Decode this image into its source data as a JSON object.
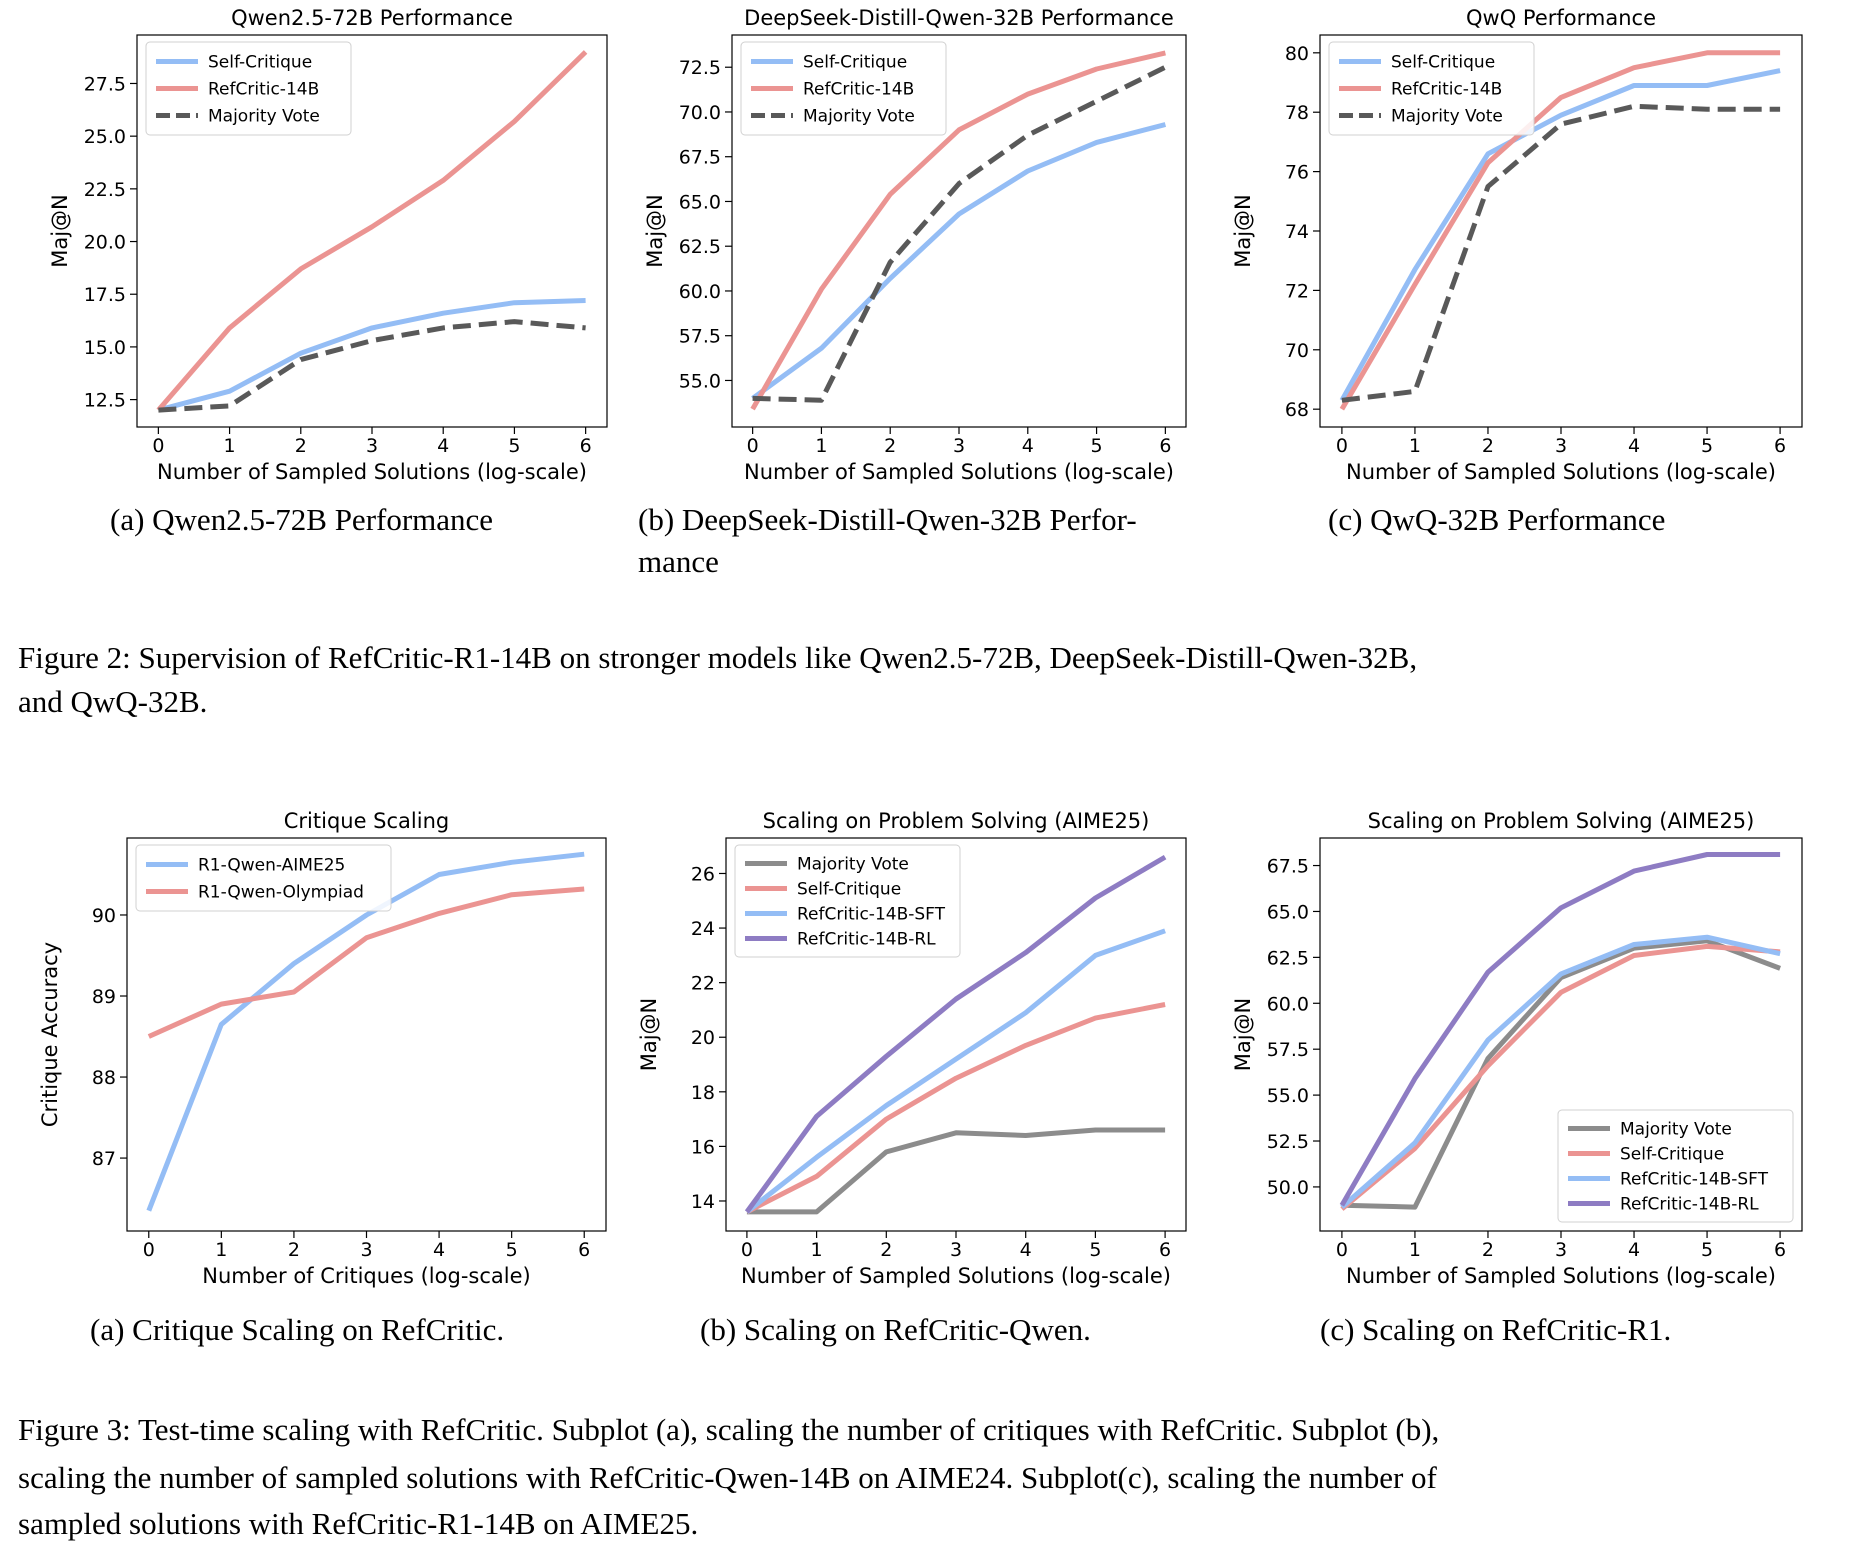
{
  "colors": {
    "blue": "#94bdf5",
    "red": "#eb9492",
    "gray": "#8c8c8c",
    "darkgray": "#595959",
    "purple": "#8e7cc3"
  },
  "figure2": {
    "subcaptions": [
      "(a)  Qwen2.5-72B Performance",
      "(b)  DeepSeek-Distill-Qwen-32B Perfor-",
      "(c)  QwQ-32B Performance"
    ],
    "subcaption_b_cont": "mance",
    "caption_line1": "Figure 2: Supervision of RefCritic-R1-14B on stronger models like Qwen2.5-72B, DeepSeek-Distill-Qwen-32B,",
    "caption_line2": "and QwQ-32B."
  },
  "figure3": {
    "subcaptions": [
      "(a)  Critique Scaling on RefCritic.",
      "(b)  Scaling on RefCritic-Qwen.",
      "(c)  Scaling on RefCritic-R1."
    ],
    "caption_line1": "Figure 3: Test-time scaling with RefCritic. Subplot (a), scaling the number of critiques with RefCritic. Subplot (b),",
    "caption_line2": "scaling the number of sampled solutions with RefCritic-Qwen-14B on AIME24. Subplot(c), scaling the number of",
    "caption_line3": "sampled solutions with RefCritic-R1-14B on AIME25."
  },
  "chart_data": [
    {
      "type": "line",
      "title": "Qwen2.5-72B Performance",
      "xlabel": "Number of Sampled Solutions (log-scale)",
      "ylabel": "Maj@N",
      "x": [
        0,
        1,
        2,
        3,
        4,
        5,
        6
      ],
      "xticks": [
        "0",
        "1",
        "2",
        "3",
        "4",
        "5",
        "6"
      ],
      "yticks": [
        "12.5",
        "15.0",
        "17.5",
        "20.0",
        "22.5",
        "25.0",
        "27.5"
      ],
      "ytick_values": [
        12.5,
        15.0,
        17.5,
        20.0,
        22.5,
        25.0,
        27.5
      ],
      "xlim": [
        -0.3,
        6.3
      ],
      "ylim": [
        11.2,
        29.8
      ],
      "legend": "top-left",
      "series": [
        {
          "name": "Self-Critique",
          "color": "blue",
          "dash": false,
          "values": [
            12.0,
            12.9,
            14.7,
            15.9,
            16.6,
            17.1,
            17.2
          ]
        },
        {
          "name": "RefCritic-14B",
          "color": "red",
          "dash": false,
          "values": [
            12.0,
            15.9,
            18.7,
            20.7,
            22.9,
            25.7,
            29.0
          ]
        },
        {
          "name": "Majority Vote",
          "color": "darkgray",
          "dash": true,
          "values": [
            12.0,
            12.2,
            14.4,
            15.3,
            15.9,
            16.2,
            15.9
          ]
        }
      ]
    },
    {
      "type": "line",
      "title": "DeepSeek-Distill-Qwen-32B Performance",
      "xlabel": "Number of Sampled Solutions (log-scale)",
      "ylabel": "Maj@N",
      "x": [
        0,
        1,
        2,
        3,
        4,
        5,
        6
      ],
      "xticks": [
        "0",
        "1",
        "2",
        "3",
        "4",
        "5",
        "6"
      ],
      "yticks": [
        "55.0",
        "57.5",
        "60.0",
        "62.5",
        "65.0",
        "67.5",
        "70.0",
        "72.5"
      ],
      "ytick_values": [
        55.0,
        57.5,
        60.0,
        62.5,
        65.0,
        67.5,
        70.0,
        72.5
      ],
      "xlim": [
        -0.3,
        6.3
      ],
      "ylim": [
        52.4,
        74.3
      ],
      "legend": "top-left",
      "series": [
        {
          "name": "Self-Critique",
          "color": "blue",
          "dash": false,
          "values": [
            54.0,
            56.8,
            60.7,
            64.3,
            66.7,
            68.3,
            69.3
          ]
        },
        {
          "name": "RefCritic-14B",
          "color": "red",
          "dash": false,
          "values": [
            53.4,
            60.1,
            65.4,
            69.0,
            71.0,
            72.4,
            73.3
          ]
        },
        {
          "name": "Majority Vote",
          "color": "darkgray",
          "dash": true,
          "values": [
            54.0,
            53.9,
            61.6,
            66.0,
            68.7,
            70.6,
            72.5
          ]
        }
      ]
    },
    {
      "type": "line",
      "title": "QwQ Performance",
      "xlabel": "Number of Sampled Solutions (log-scale)",
      "ylabel": "Maj@N",
      "x": [
        0,
        1,
        2,
        3,
        4,
        5,
        6
      ],
      "xticks": [
        "0",
        "1",
        "2",
        "3",
        "4",
        "5",
        "6"
      ],
      "yticks": [
        "68",
        "70",
        "72",
        "74",
        "76",
        "78",
        "80"
      ],
      "ytick_values": [
        68,
        70,
        72,
        74,
        76,
        78,
        80
      ],
      "xlim": [
        -0.3,
        6.3
      ],
      "ylim": [
        67.4,
        80.6
      ],
      "legend": "top-left",
      "series": [
        {
          "name": "Self-Critique",
          "color": "blue",
          "dash": false,
          "values": [
            68.3,
            72.7,
            76.6,
            77.9,
            78.9,
            78.9,
            79.4
          ]
        },
        {
          "name": "RefCritic-14B",
          "color": "red",
          "dash": false,
          "values": [
            68.0,
            72.2,
            76.3,
            78.5,
            79.5,
            80.0,
            80.0
          ]
        },
        {
          "name": "Majority Vote",
          "color": "darkgray",
          "dash": true,
          "values": [
            68.3,
            68.6,
            75.5,
            77.6,
            78.2,
            78.1,
            78.1
          ]
        }
      ]
    },
    {
      "type": "line",
      "title": "Critique Scaling",
      "xlabel": "Number of Critiques (log-scale)",
      "ylabel": "Critique Accuracy",
      "x": [
        0,
        1,
        2,
        3,
        4,
        5,
        6
      ],
      "xticks": [
        "0",
        "1",
        "2",
        "3",
        "4",
        "5",
        "6"
      ],
      "yticks": [
        "87",
        "88",
        "89",
        "90"
      ],
      "ytick_values": [
        87,
        88,
        89,
        90
      ],
      "xlim": [
        -0.3,
        6.3
      ],
      "ylim": [
        86.1,
        90.95
      ],
      "legend": "top-left",
      "series": [
        {
          "name": "R1-Qwen-AIME25",
          "color": "blue",
          "dash": false,
          "values": [
            86.35,
            88.65,
            89.4,
            90.0,
            90.5,
            90.65,
            90.75
          ]
        },
        {
          "name": "R1-Qwen-Olympiad",
          "color": "red",
          "dash": false,
          "values": [
            88.5,
            88.9,
            89.05,
            89.72,
            90.02,
            90.25,
            90.32
          ]
        }
      ]
    },
    {
      "type": "line",
      "title": "Scaling on Problem Solving (AIME25)",
      "xlabel": "Number of Sampled Solutions (log-scale)",
      "ylabel": "Maj@N",
      "x": [
        0,
        1,
        2,
        3,
        4,
        5,
        6
      ],
      "xticks": [
        "0",
        "1",
        "2",
        "3",
        "4",
        "5",
        "6"
      ],
      "yticks": [
        "14",
        "16",
        "18",
        "20",
        "22",
        "24",
        "26"
      ],
      "ytick_values": [
        14,
        16,
        18,
        20,
        22,
        24,
        26
      ],
      "xlim": [
        -0.3,
        6.3
      ],
      "ylim": [
        12.9,
        27.3
      ],
      "legend": "top-left",
      "series": [
        {
          "name": "Majority Vote",
          "color": "gray",
          "dash": false,
          "values": [
            13.6,
            13.6,
            15.8,
            16.5,
            16.4,
            16.6,
            16.6
          ]
        },
        {
          "name": "Self-Critique",
          "color": "red",
          "dash": false,
          "values": [
            13.6,
            14.9,
            17.0,
            18.5,
            19.7,
            20.7,
            21.2
          ]
        },
        {
          "name": "RefCritic-14B-SFT",
          "color": "blue",
          "dash": false,
          "values": [
            13.6,
            15.6,
            17.5,
            19.2,
            20.9,
            23.0,
            23.9
          ]
        },
        {
          "name": "RefCritic-14B-RL",
          "color": "purple",
          "dash": false,
          "values": [
            13.6,
            17.1,
            19.3,
            21.4,
            23.1,
            25.1,
            26.6
          ]
        }
      ]
    },
    {
      "type": "line",
      "title": "Scaling on Problem Solving (AIME25)",
      "xlabel": "Number of Sampled Solutions (log-scale)",
      "ylabel": "Maj@N",
      "x": [
        0,
        1,
        2,
        3,
        4,
        5,
        6
      ],
      "xticks": [
        "0",
        "1",
        "2",
        "3",
        "4",
        "5",
        "6"
      ],
      "yticks": [
        "50.0",
        "52.5",
        "55.0",
        "57.5",
        "60.0",
        "62.5",
        "65.0",
        "67.5"
      ],
      "ytick_values": [
        50.0,
        52.5,
        55.0,
        57.5,
        60.0,
        62.5,
        65.0,
        67.5
      ],
      "xlim": [
        -0.3,
        6.3
      ],
      "ylim": [
        47.6,
        69.0
      ],
      "legend": "bottom-right",
      "series": [
        {
          "name": "Majority Vote",
          "color": "gray",
          "dash": false,
          "values": [
            49.0,
            48.9,
            57.0,
            61.4,
            63.0,
            63.4,
            61.9
          ]
        },
        {
          "name": "Self-Critique",
          "color": "red",
          "dash": false,
          "values": [
            48.8,
            52.1,
            56.6,
            60.6,
            62.6,
            63.1,
            62.8
          ]
        },
        {
          "name": "RefCritic-14B-SFT",
          "color": "blue",
          "dash": false,
          "values": [
            48.9,
            52.4,
            58.0,
            61.6,
            63.2,
            63.6,
            62.7
          ]
        },
        {
          "name": "RefCritic-14B-RL",
          "color": "purple",
          "dash": false,
          "values": [
            49.0,
            55.9,
            61.7,
            65.2,
            67.2,
            68.1,
            68.1
          ]
        }
      ]
    }
  ]
}
